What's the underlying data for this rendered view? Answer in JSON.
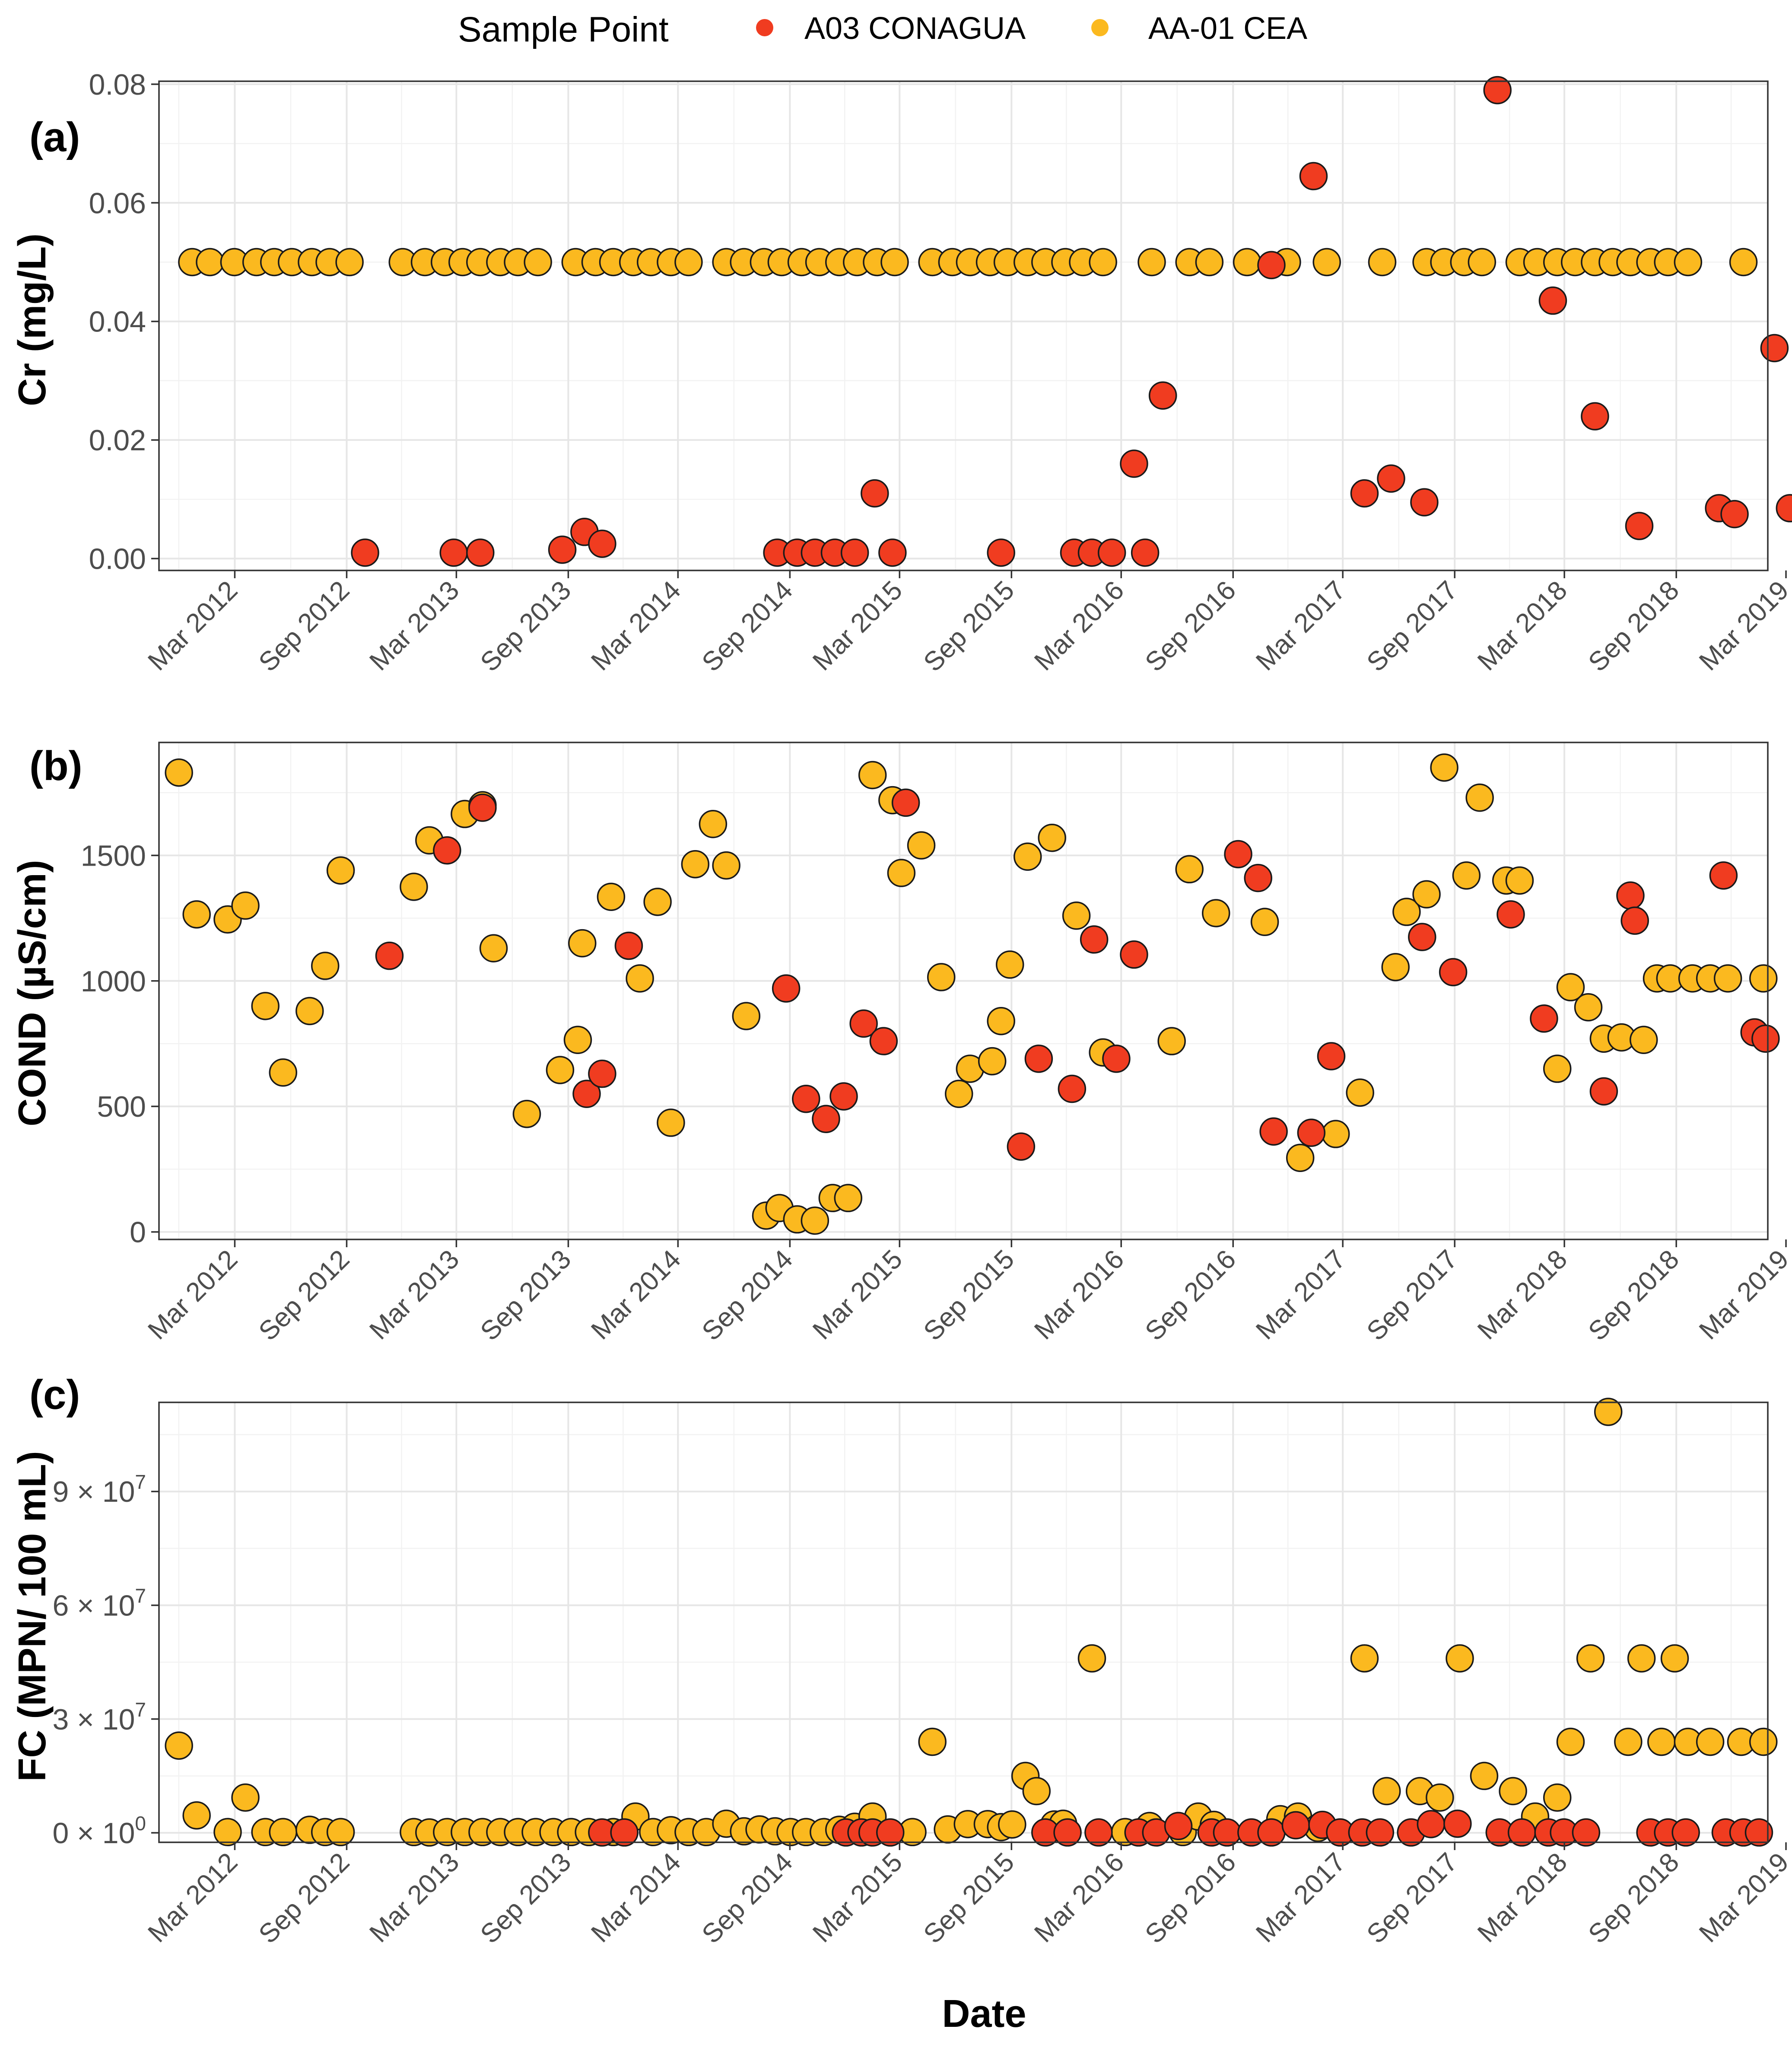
{
  "legend": {
    "title": "Sample Point",
    "entries": [
      {
        "key": "A03",
        "label": "A03 CONAGUA",
        "color": "#f03c20"
      },
      {
        "key": "AA01",
        "label": "AA-01 CEA",
        "color": "#fbb91f"
      }
    ]
  },
  "x_axis": {
    "title": "Date",
    "domain": [
      2011.82,
      2019.08
    ],
    "ticks": [
      {
        "label": "Mar 2012",
        "value": 2012.162
      },
      {
        "label": "Sep 2012",
        "value": 2012.667
      },
      {
        "label": "Mar 2013",
        "value": 2013.162
      },
      {
        "label": "Sep 2013",
        "value": 2013.667
      },
      {
        "label": "Mar 2014",
        "value": 2014.162
      },
      {
        "label": "Sep 2014",
        "value": 2014.667
      },
      {
        "label": "Mar 2015",
        "value": 2015.162
      },
      {
        "label": "Sep 2015",
        "value": 2015.667
      },
      {
        "label": "Mar 2016",
        "value": 2016.162
      },
      {
        "label": "Sep 2016",
        "value": 2016.667
      },
      {
        "label": "Mar 2017",
        "value": 2017.162
      },
      {
        "label": "Sep 2017",
        "value": 2017.667
      },
      {
        "label": "Mar 2018",
        "value": 2018.162
      },
      {
        "label": "Sep 2018",
        "value": 2018.667
      },
      {
        "label": "Mar 2019",
        "value": 2019.162
      }
    ]
  },
  "chart_data": [
    {
      "type": "scatter",
      "panel_label": "(a)",
      "ylabel": "Cr (mg/L)",
      "ylim": [
        -0.002,
        0.0805
      ],
      "y_ticks": [
        {
          "label": "0.00",
          "value": 0
        },
        {
          "label": "0.02",
          "value": 0.02
        },
        {
          "label": "0.04",
          "value": 0.04
        },
        {
          "label": "0.06",
          "value": 0.06
        },
        {
          "label": "0.08",
          "value": 0.08
        }
      ],
      "series": [
        {
          "name": "A03 CONAGUA",
          "color": "#f03c20",
          "x": [
            2012.75,
            2013.15,
            2013.27,
            2013.64,
            2013.74,
            2013.82,
            2014.61,
            2014.7,
            2014.78,
            2014.87,
            2014.96,
            2015.05,
            2015.13,
            2015.62,
            2015.95,
            2016.03,
            2016.12,
            2016.22,
            2016.27,
            2016.35,
            2016.84,
            2017.03,
            2017.26,
            2017.38,
            2017.53,
            2017.86,
            2018.11,
            2018.3,
            2018.5,
            2018.86,
            2018.93,
            2019.11,
            2019.18
          ],
          "y": [
            0.001,
            0.001,
            0.001,
            0.0015,
            0.0045,
            0.0025,
            0.001,
            0.001,
            0.001,
            0.001,
            0.001,
            0.011,
            0.001,
            0.001,
            0.001,
            0.001,
            0.001,
            0.016,
            0.001,
            0.0275,
            0.0495,
            0.0645,
            0.011,
            0.0135,
            0.0095,
            0.079,
            0.0435,
            0.024,
            0.0055,
            0.0085,
            0.0075,
            0.0355,
            0.0085
          ]
        },
        {
          "name": "AA-01 CEA",
          "color": "#fbb91f",
          "x": [
            2011.97,
            2012.05,
            2012.16,
            2012.26,
            2012.34,
            2012.42,
            2012.51,
            2012.59,
            2012.68,
            2012.92,
            2013.02,
            2013.11,
            2013.19,
            2013.27,
            2013.36,
            2013.44,
            2013.53,
            2013.7,
            2013.79,
            2013.87,
            2013.96,
            2014.04,
            2014.13,
            2014.21,
            2014.38,
            2014.46,
            2014.55,
            2014.63,
            2014.72,
            2014.8,
            2014.89,
            2014.97,
            2015.06,
            2015.14,
            2015.31,
            2015.4,
            2015.48,
            2015.57,
            2015.65,
            2015.74,
            2015.82,
            2015.91,
            2015.99,
            2016.08,
            2016.3,
            2016.47,
            2016.56,
            2016.73,
            2016.91,
            2017.09,
            2017.34,
            2017.54,
            2017.62,
            2017.71,
            2017.79,
            2017.96,
            2018.04,
            2018.13,
            2018.21,
            2018.3,
            2018.38,
            2018.46,
            2018.55,
            2018.63,
            2018.72,
            2018.97
          ],
          "y": [
            0.05,
            0.05,
            0.05,
            0.05,
            0.05,
            0.05,
            0.05,
            0.05,
            0.05,
            0.05,
            0.05,
            0.05,
            0.05,
            0.05,
            0.05,
            0.05,
            0.05,
            0.05,
            0.05,
            0.05,
            0.05,
            0.05,
            0.05,
            0.05,
            0.05,
            0.05,
            0.05,
            0.05,
            0.05,
            0.05,
            0.05,
            0.05,
            0.05,
            0.05,
            0.05,
            0.05,
            0.05,
            0.05,
            0.05,
            0.05,
            0.05,
            0.05,
            0.05,
            0.05,
            0.05,
            0.05,
            0.05,
            0.05,
            0.05,
            0.05,
            0.05,
            0.05,
            0.05,
            0.05,
            0.05,
            0.05,
            0.05,
            0.05,
            0.05,
            0.05,
            0.05,
            0.05,
            0.05,
            0.05,
            0.05,
            0.05
          ]
        }
      ]
    },
    {
      "type": "scatter",
      "panel_label": "(b)",
      "ylabel": "COND (µS/cm)",
      "ylim": [
        -30,
        1950
      ],
      "y_ticks": [
        {
          "label": "0",
          "value": 0
        },
        {
          "label": "500",
          "value": 500
        },
        {
          "label": "1000",
          "value": 1000
        },
        {
          "label": "1500",
          "value": 1500
        }
      ],
      "series": [
        {
          "name": "A03 CONAGUA",
          "color": "#f03c20",
          "x": [
            2012.86,
            2013.12,
            2013.28,
            2013.75,
            2013.82,
            2013.94,
            2014.65,
            2014.74,
            2014.83,
            2014.91,
            2015.0,
            2015.09,
            2015.19,
            2015.71,
            2015.79,
            2015.94,
            2016.04,
            2016.14,
            2016.22,
            2016.69,
            2016.78,
            2016.85,
            2017.02,
            2017.11,
            2017.52,
            2017.66,
            2017.92,
            2018.07,
            2018.34,
            2018.46,
            2018.48,
            2018.88,
            2019.02,
            2019.07
          ],
          "y": [
            1100,
            1520,
            1690,
            550,
            630,
            1140,
            970,
            530,
            450,
            540,
            830,
            760,
            1710,
            340,
            690,
            570,
            1165,
            690,
            1105,
            1505,
            1410,
            400,
            395,
            700,
            1175,
            1035,
            1265,
            850,
            560,
            1340,
            1240,
            1420,
            795,
            770
          ]
        },
        {
          "name": "AA-01 CEA",
          "color": "#fbb91f",
          "x": [
            2011.91,
            2011.99,
            2012.13,
            2012.21,
            2012.3,
            2012.38,
            2012.5,
            2012.57,
            2012.64,
            2012.97,
            2013.04,
            2013.2,
            2013.28,
            2013.33,
            2013.48,
            2013.63,
            2013.71,
            2013.73,
            2013.86,
            2013.99,
            2014.07,
            2014.13,
            2014.24,
            2014.32,
            2014.38,
            2014.47,
            2014.56,
            2014.62,
            2014.7,
            2014.78,
            2014.86,
            2014.93,
            2015.04,
            2015.13,
            2015.17,
            2015.26,
            2015.35,
            2015.43,
            2015.48,
            2015.58,
            2015.62,
            2015.66,
            2015.74,
            2015.85,
            2015.96,
            2016.08,
            2016.39,
            2016.47,
            2016.59,
            2016.81,
            2016.97,
            2017.13,
            2017.24,
            2017.4,
            2017.45,
            2017.54,
            2017.62,
            2017.72,
            2017.78,
            2017.9,
            2017.96,
            2018.13,
            2018.19,
            2018.27,
            2018.34,
            2018.42,
            2018.52,
            2018.58,
            2018.64,
            2018.74,
            2018.82,
            2018.9,
            2019.06
          ],
          "y": [
            1830,
            1265,
            1245,
            1300,
            900,
            635,
            880,
            1060,
            1440,
            1375,
            1560,
            1665,
            1700,
            1130,
            470,
            645,
            765,
            1150,
            1335,
            1010,
            1315,
            435,
            1465,
            1625,
            1460,
            860,
            65,
            95,
            50,
            45,
            135,
            135,
            1820,
            1720,
            1430,
            1540,
            1015,
            550,
            650,
            680,
            840,
            1065,
            1495,
            1570,
            1260,
            715,
            760,
            1445,
            1270,
            1235,
            295,
            390,
            555,
            1055,
            1275,
            1345,
            1850,
            1420,
            1730,
            1400,
            1400,
            650,
            975,
            895,
            770,
            775,
            765,
            1010,
            1010,
            1010,
            1010,
            1010,
            1010
          ]
        }
      ]
    },
    {
      "type": "scatter",
      "panel_label": "(c)",
      "ylabel": "FC (MPN/ 100 mL)",
      "ylim": [
        -2500000,
        113500000
      ],
      "y_ticks": [
        {
          "label": "0 × 10",
          "exp": "0",
          "value": 0
        },
        {
          "label": "3 × 10",
          "exp": "7",
          "value": 30000000
        },
        {
          "label": "6 × 10",
          "exp": "7",
          "value": 60000000
        },
        {
          "label": "9 × 10",
          "exp": "7",
          "value": 90000000
        }
      ],
      "series": [
        {
          "name": "A03 CONAGUA",
          "color": "#f03c20",
          "x": [
            2013.82,
            2013.92,
            2014.92,
            2014.99,
            2015.04,
            2015.12,
            2015.82,
            2015.92,
            2016.06,
            2016.24,
            2016.32,
            2016.42,
            2016.57,
            2016.64,
            2016.75,
            2016.84,
            2016.95,
            2017.07,
            2017.15,
            2017.25,
            2017.33,
            2017.47,
            2017.56,
            2017.68,
            2017.87,
            2017.97,
            2018.09,
            2018.16,
            2018.26,
            2018.55,
            2018.63,
            2018.71,
            2018.89,
            2018.97,
            2019.04
          ],
          "y": [
            100000,
            100000,
            100000,
            100000,
            100000,
            100000,
            100000,
            100000,
            100000,
            100000,
            100000,
            1800000,
            100000,
            100000,
            100000,
            100000,
            2000000,
            2100000,
            100000,
            100000,
            100000,
            100000,
            2300000,
            2400000,
            100000,
            100000,
            100000,
            100000,
            100000,
            100000,
            100000,
            100000,
            100000,
            100000,
            100000
          ]
        },
        {
          "name": "AA-01 CEA",
          "color": "#fbb91f",
          "x": [
            2011.91,
            2011.99,
            2012.13,
            2012.21,
            2012.3,
            2012.38,
            2012.5,
            2012.57,
            2012.64,
            2012.97,
            2013.04,
            2013.12,
            2013.2,
            2013.28,
            2013.36,
            2013.44,
            2013.52,
            2013.6,
            2013.68,
            2013.76,
            2013.87,
            2013.97,
            2014.05,
            2014.13,
            2014.21,
            2014.29,
            2014.38,
            2014.46,
            2014.53,
            2014.6,
            2014.67,
            2014.74,
            2014.82,
            2014.89,
            2014.96,
            2015.04,
            2015.22,
            2015.31,
            2015.38,
            2015.47,
            2015.56,
            2015.62,
            2015.67,
            2015.73,
            2015.78,
            2015.86,
            2015.9,
            2016.03,
            2016.18,
            2016.29,
            2016.44,
            2016.51,
            2016.58,
            2016.88,
            2016.96,
            2017.05,
            2017.26,
            2017.36,
            2017.51,
            2017.6,
            2017.69,
            2017.8,
            2017.93,
            2018.03,
            2018.13,
            2018.19,
            2018.28,
            2018.36,
            2018.45,
            2018.51,
            2018.6,
            2018.66,
            2018.72,
            2018.82,
            2018.96,
            2019.06
          ],
          "y": [
            23000000,
            4600000,
            200000,
            9300000,
            200000,
            200000,
            800000,
            200000,
            200000,
            200000,
            100000,
            200000,
            200000,
            200000,
            200000,
            200000,
            200000,
            200000,
            200000,
            200000,
            200000,
            4300000,
            200000,
            700000,
            200000,
            200000,
            2400000,
            400000,
            900000,
            400000,
            200000,
            200000,
            200000,
            800000,
            1600000,
            4300000,
            200000,
            24000000,
            900000,
            2300000,
            2300000,
            1500000,
            2200000,
            15000000,
            11000000,
            2200000,
            2400000,
            46000000,
            200000,
            1800000,
            200000,
            4300000,
            2100000,
            3600000,
            4300000,
            1300000,
            46000000,
            11000000,
            11000000,
            9300000,
            46000000,
            15000000,
            11000000,
            4300000,
            9300000,
            24000000,
            46000000,
            111000000,
            24000000,
            46000000,
            24000000,
            46000000,
            24000000,
            24000000,
            24000000,
            24000000
          ]
        }
      ]
    }
  ]
}
